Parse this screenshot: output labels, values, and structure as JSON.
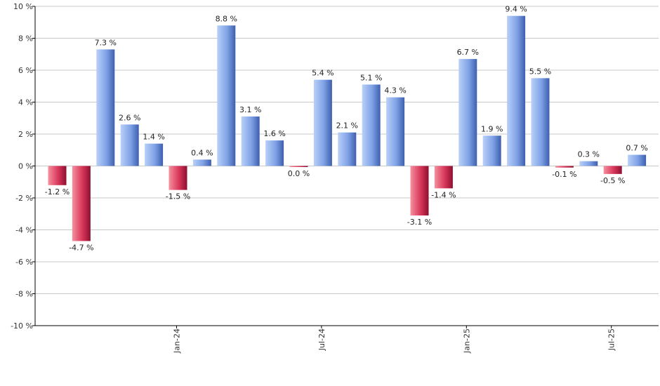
{
  "chart_data": {
    "type": "bar",
    "ylim": [
      -10,
      10
    ],
    "ytick_values": [
      10,
      8,
      6,
      4,
      2,
      0,
      -2,
      -4,
      -6,
      -8,
      -10
    ],
    "ytick_labels": [
      "10 %",
      "8 %",
      "6 %",
      "4 %",
      "2 %",
      "0 %",
      "-2 %",
      "-4 %",
      "-6 %",
      "-8 %",
      "-10 %"
    ],
    "x_labels": [
      {
        "label": "Jan-24",
        "index": 5
      },
      {
        "label": "Jul-24",
        "index": 11
      },
      {
        "label": "Jan-25",
        "index": 17
      },
      {
        "label": "Jul-25",
        "index": 23
      }
    ],
    "values": [
      -1.2,
      -4.7,
      7.3,
      2.6,
      1.4,
      -1.5,
      0.4,
      8.8,
      3.1,
      1.6,
      -0.05,
      5.4,
      2.1,
      5.1,
      4.3,
      -3.1,
      -1.4,
      6.7,
      1.9,
      9.4,
      5.5,
      -0.1,
      0.3,
      -0.5,
      0.7
    ],
    "labels": [
      "-1.2 %",
      "-4.7 %",
      "7.3 %",
      "2.6 %",
      "1.4 %",
      "-1.5 %",
      "0.4 %",
      "8.8 %",
      "3.1 %",
      "1.6 %",
      "0.0 %",
      "5.4 %",
      "2.1 %",
      "5.1 %",
      "4.3 %",
      "-3.1 %",
      "-1.4 %",
      "6.7 %",
      "1.9 %",
      "9.4 %",
      "5.5 %",
      "-0.1 %",
      "0.3 %",
      "-0.5 %",
      "0.7 %"
    ],
    "colors": {
      "positive_light": "#a9c4f5",
      "positive_dark": "#4a6fc4",
      "negative_light": "#f07a8e",
      "negative_dark": "#a8123a",
      "grid": "#c8c8c8",
      "axis": "#000000"
    },
    "grid": true,
    "legend": "none"
  }
}
